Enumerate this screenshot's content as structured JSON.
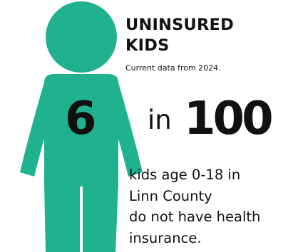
{
  "headline": {
    "line1": "UNINSURED",
    "line2": "KIDS"
  },
  "subtitle": "Current data from 2024.",
  "stat": {
    "count": "6",
    "connector": "in",
    "total": "100"
  },
  "description": {
    "line1": "kids age 0-18 in",
    "line2": "Linn County",
    "line3": "do not have health",
    "line4": "insurance."
  },
  "colors": {
    "figure": "#20b28f",
    "text": "#111111",
    "background": "#ffffff"
  },
  "icon": "child-figure-icon"
}
